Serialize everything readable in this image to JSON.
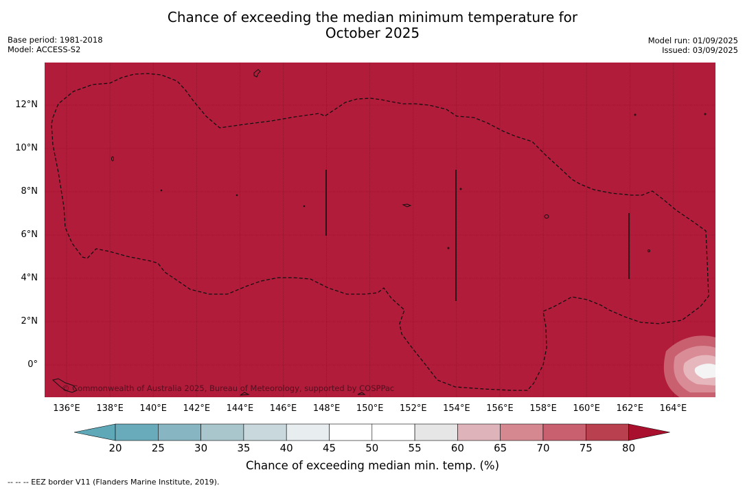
{
  "title": "Chance of exceeding the median minimum temperature for October 2025",
  "title_lines": [
    "Chance of exceeding the median minimum temperature for",
    "October 2025"
  ],
  "meta_left": {
    "base_period": "Base period: 1981-2018",
    "model": "Model: ACCESS-S2"
  },
  "meta_right": {
    "model_run": "Model run: 01/09/2025",
    "issued": "Issued: 03/09/2025"
  },
  "map": {
    "fill_color": "#b01c3a",
    "copyright": "© Commonwealth of Australia 2025, Bureau of Meteorology, supported by COSPPac",
    "longitude_labels": [
      "136°E",
      "138°E",
      "140°E",
      "142°E",
      "144°E",
      "146°E",
      "148°E",
      "150°E",
      "152°E",
      "154°E",
      "156°E",
      "158°E",
      "160°E",
      "162°E",
      "164°E"
    ],
    "latitude_labels": [
      "12°N",
      "10°N",
      "8°N",
      "6°N",
      "4°N",
      "2°N",
      "0°"
    ]
  },
  "colorbar": {
    "ticks": [
      "20",
      "25",
      "30",
      "35",
      "40",
      "45",
      "50",
      "55",
      "60",
      "65",
      "70",
      "75",
      "80"
    ],
    "colors": [
      "#5fa8b8",
      "#6aabbb",
      "#87b5c2",
      "#a8c6cc",
      "#c8d8dc",
      "#e8eef0",
      "#ffffff",
      "#ffffff",
      "#e6e6e6",
      "#dfb3ba",
      "#d58890",
      "#c8606f",
      "#b8404f",
      "#a8102e"
    ],
    "title": "Chance of exceeding median min. temp. (%)"
  },
  "footnote": "-- -- -- EEZ border V11 (Flanders Marine Institute, 2019)."
}
